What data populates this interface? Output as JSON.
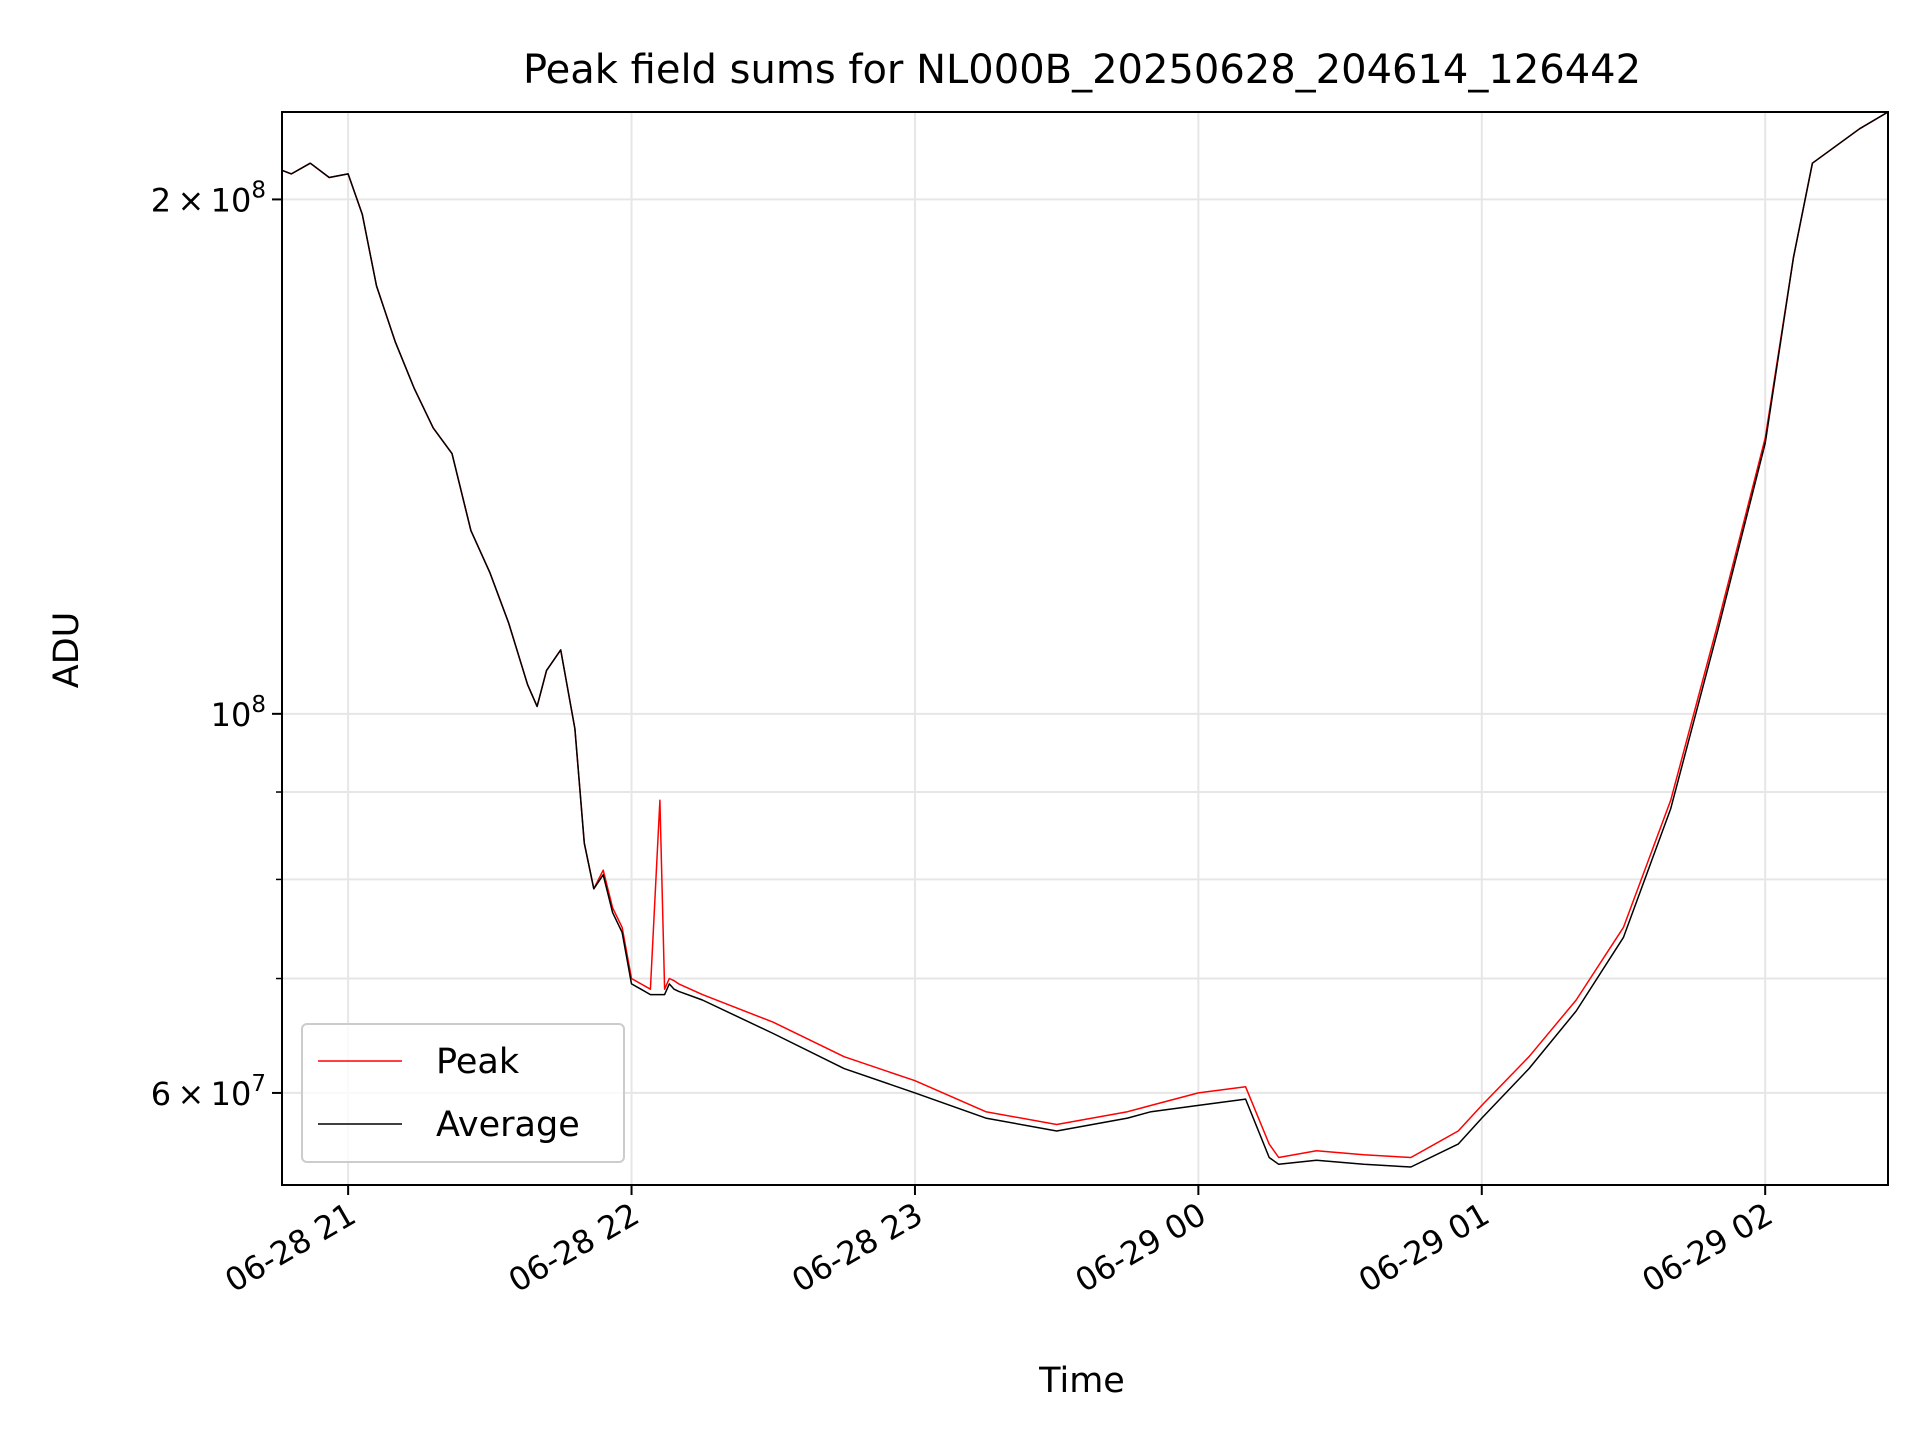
{
  "chart_data": {
    "type": "line",
    "title": "Peak field sums for NL000B_20250628_204614_126442",
    "xlabel": "Time",
    "ylabel": "ADU",
    "y_scale": "log",
    "ylim": [
      53000000,
      225000000
    ],
    "xlim": [
      "2025-06-28 20:46:00",
      "2025-06-29 02:26:00"
    ],
    "x_ticks": [
      {
        "at": "2025-06-28 21:00",
        "label": "06-28 21"
      },
      {
        "at": "2025-06-28 22:00",
        "label": "06-28 22"
      },
      {
        "at": "2025-06-28 23:00",
        "label": "06-28 23"
      },
      {
        "at": "2025-06-29 00:00",
        "label": "06-29 00"
      },
      {
        "at": "2025-06-29 01:00",
        "label": "06-29 01"
      },
      {
        "at": "2025-06-29 02:00",
        "label": "06-29 02"
      }
    ],
    "y_major_ticks": [
      {
        "value": 60000000,
        "mantissa": "6",
        "exponent": "7"
      },
      {
        "value": 100000000,
        "mantissa": "",
        "exponent": "8"
      },
      {
        "value": 200000000,
        "mantissa": "2",
        "exponent": "8"
      }
    ],
    "y_minor_grid": [
      70000000,
      80000000,
      90000000
    ],
    "grid": true,
    "legend_position": "lower-left",
    "series": [
      {
        "name": "Peak",
        "color": "#ff0000",
        "x": [
          "2025-06-28 20:46",
          "2025-06-28 20:48",
          "2025-06-28 20:52",
          "2025-06-28 20:56",
          "2025-06-28 21:00",
          "2025-06-28 21:03",
          "2025-06-28 21:06",
          "2025-06-28 21:10",
          "2025-06-28 21:14",
          "2025-06-28 21:18",
          "2025-06-28 21:22",
          "2025-06-28 21:26",
          "2025-06-28 21:30",
          "2025-06-28 21:34",
          "2025-06-28 21:38",
          "2025-06-28 21:40",
          "2025-06-28 21:42",
          "2025-06-28 21:45",
          "2025-06-28 21:48",
          "2025-06-28 21:50",
          "2025-06-28 21:52",
          "2025-06-28 21:54",
          "2025-06-28 21:56",
          "2025-06-28 21:58",
          "2025-06-28 22:00",
          "2025-06-28 22:02",
          "2025-06-28 22:04",
          "2025-06-28 22:06",
          "2025-06-28 22:07",
          "2025-06-28 22:08",
          "2025-06-28 22:09",
          "2025-06-28 22:10",
          "2025-06-28 22:15",
          "2025-06-28 22:30",
          "2025-06-28 22:45",
          "2025-06-28 23:00",
          "2025-06-28 23:15",
          "2025-06-28 23:30",
          "2025-06-28 23:45",
          "2025-06-28 23:50",
          "2025-06-29 00:00",
          "2025-06-29 00:10",
          "2025-06-29 00:15",
          "2025-06-29 00:17",
          "2025-06-29 00:25",
          "2025-06-29 00:35",
          "2025-06-29 00:45",
          "2025-06-29 00:55",
          "2025-06-29 01:00",
          "2025-06-29 01:10",
          "2025-06-29 01:20",
          "2025-06-29 01:30",
          "2025-06-29 01:40",
          "2025-06-29 01:50",
          "2025-06-29 02:00",
          "2025-06-29 02:06",
          "2025-06-29 02:10",
          "2025-06-29 02:20",
          "2025-06-29 02:26"
        ],
        "y": [
          208000000,
          207000000,
          210000000,
          206000000,
          207000000,
          196000000,
          178000000,
          165000000,
          155000000,
          147000000,
          142000000,
          128000000,
          121000000,
          113000000,
          104000000,
          101000000,
          106000000,
          109000000,
          98000000,
          84000000,
          79000000,
          81000000,
          77000000,
          75000000,
          70000000,
          69500000,
          69000000,
          89000000,
          69000000,
          70000000,
          69800000,
          69500000,
          68500000,
          66000000,
          63000000,
          61000000,
          58500000,
          57500000,
          58500000,
          59000000,
          60000000,
          60500000,
          56000000,
          55000000,
          55500000,
          55200000,
          55000000,
          57000000,
          59000000,
          63000000,
          68000000,
          75000000,
          89000000,
          113000000,
          145000000,
          185000000,
          210000000,
          220000000,
          225000000
        ]
      },
      {
        "name": "Average",
        "color": "#000000",
        "x": [
          "2025-06-28 20:46",
          "2025-06-28 20:48",
          "2025-06-28 20:52",
          "2025-06-28 20:56",
          "2025-06-28 21:00",
          "2025-06-28 21:03",
          "2025-06-28 21:06",
          "2025-06-28 21:10",
          "2025-06-28 21:14",
          "2025-06-28 21:18",
          "2025-06-28 21:22",
          "2025-06-28 21:26",
          "2025-06-28 21:30",
          "2025-06-28 21:34",
          "2025-06-28 21:38",
          "2025-06-28 21:40",
          "2025-06-28 21:42",
          "2025-06-28 21:45",
          "2025-06-28 21:48",
          "2025-06-28 21:50",
          "2025-06-28 21:52",
          "2025-06-28 21:54",
          "2025-06-28 21:56",
          "2025-06-28 21:58",
          "2025-06-28 22:00",
          "2025-06-28 22:02",
          "2025-06-28 22:04",
          "2025-06-28 22:06",
          "2025-06-28 22:07",
          "2025-06-28 22:08",
          "2025-06-28 22:09",
          "2025-06-28 22:10",
          "2025-06-28 22:15",
          "2025-06-28 22:30",
          "2025-06-28 22:45",
          "2025-06-28 23:00",
          "2025-06-28 23:15",
          "2025-06-28 23:30",
          "2025-06-28 23:45",
          "2025-06-28 23:50",
          "2025-06-29 00:00",
          "2025-06-29 00:10",
          "2025-06-29 00:15",
          "2025-06-29 00:17",
          "2025-06-29 00:25",
          "2025-06-29 00:35",
          "2025-06-29 00:45",
          "2025-06-29 00:55",
          "2025-06-29 01:00",
          "2025-06-29 01:10",
          "2025-06-29 01:20",
          "2025-06-29 01:30",
          "2025-06-29 01:40",
          "2025-06-29 01:50",
          "2025-06-29 02:00",
          "2025-06-29 02:06",
          "2025-06-29 02:10",
          "2025-06-29 02:20",
          "2025-06-29 02:26"
        ],
        "y": [
          208000000,
          207000000,
          210000000,
          206000000,
          207000000,
          196000000,
          178000000,
          165000000,
          155000000,
          147000000,
          142000000,
          128000000,
          121000000,
          113000000,
          104000000,
          101000000,
          106000000,
          109000000,
          98000000,
          84000000,
          79000000,
          80500000,
          76500000,
          74500000,
          69500000,
          69000000,
          68500000,
          68500000,
          68500000,
          69500000,
          69000000,
          68800000,
          68000000,
          65000000,
          62000000,
          60000000,
          58000000,
          57000000,
          58000000,
          58500000,
          59000000,
          59500000,
          55000000,
          54500000,
          54800000,
          54500000,
          54300000,
          56000000,
          58000000,
          62000000,
          67000000,
          74000000,
          88000000,
          112000000,
          144000000,
          185000000,
          210000000,
          220000000,
          225000000
        ]
      }
    ]
  }
}
